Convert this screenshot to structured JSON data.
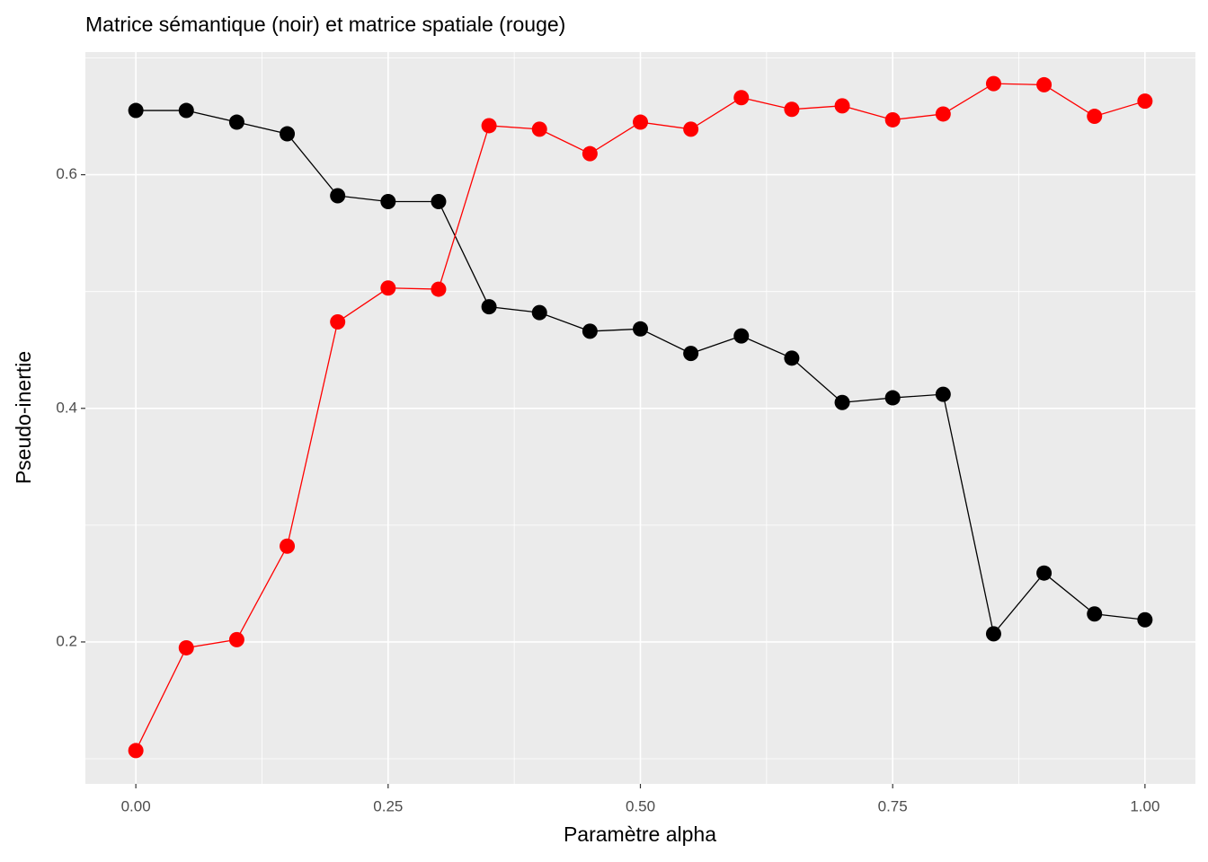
{
  "chart_data": {
    "type": "line",
    "title": "Matrice sémantique (noir) et matrice spatiale (rouge)",
    "x_label": "Paramètre alpha",
    "y_label": "Pseudo-inertie",
    "x": [
      0,
      0.05,
      0.1,
      0.15,
      0.2,
      0.25,
      0.3,
      0.35,
      0.4,
      0.45,
      0.5,
      0.55,
      0.6,
      0.65,
      0.7,
      0.75,
      0.8,
      0.85,
      0.9,
      0.95,
      1.0
    ],
    "series": [
      {
        "color": "#000000",
        "values": [
          0.655,
          0.655,
          0.645,
          0.635,
          0.582,
          0.577,
          0.577,
          0.487,
          0.482,
          0.466,
          0.468,
          0.447,
          0.462,
          0.443,
          0.405,
          0.409,
          0.412,
          0.207,
          0.259,
          0.224,
          0.219
        ]
      },
      {
        "color": "#ff0000",
        "values": [
          0.107,
          0.195,
          0.202,
          0.282,
          0.474,
          0.503,
          0.502,
          0.642,
          0.639,
          0.618,
          0.645,
          0.639,
          0.666,
          0.656,
          0.659,
          0.647,
          0.652,
          0.678,
          0.677,
          0.65,
          0.663
        ]
      }
    ],
    "xlim": [
      -0.05,
      1.05
    ],
    "ylim": [
      0.0785,
      0.705
    ],
    "xticks": [
      {
        "value": 0,
        "label": "0.00"
      },
      {
        "value": 0.25,
        "label": "0.25"
      },
      {
        "value": 0.5,
        "label": "0.50"
      },
      {
        "value": 0.75,
        "label": "0.75"
      },
      {
        "value": 1,
        "label": "1.00"
      }
    ],
    "yticks": [
      0.2,
      0.4,
      0.6
    ],
    "grid": true,
    "markers": true
  }
}
